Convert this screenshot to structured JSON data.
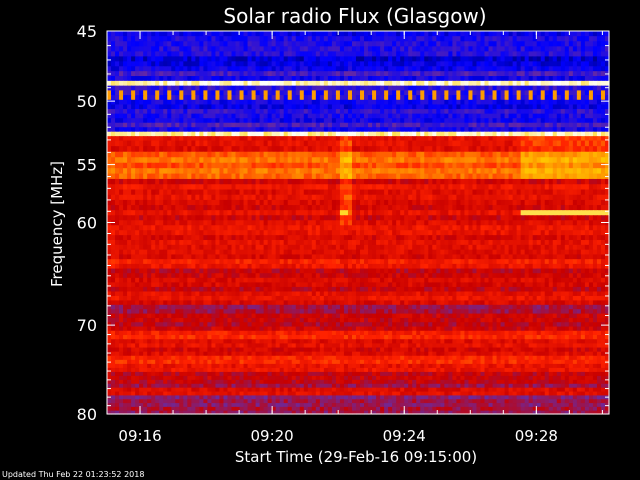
{
  "chart_data": {
    "type": "heatmap",
    "title": "Solar radio Flux (Glasgow)",
    "xlabel": "Start Time (29-Feb-16 09:15:00)",
    "ylabel": "Frequency [MHz]",
    "y_scale": "log",
    "ylim": [
      80,
      45
    ],
    "x_ticks": [
      "09:16",
      "09:20",
      "09:24",
      "09:28"
    ],
    "y_ticks": [
      "45",
      "50",
      "55",
      "60",
      "70",
      "80"
    ],
    "colormap": [
      "#000044",
      "#0000ff",
      "#6a2aa0",
      "#c80000",
      "#ff2200",
      "#ff8a00",
      "#ffd000",
      "#ffffff"
    ]
  },
  "footer": {
    "updated": "Updated Thu Feb 22 01:23:52 2018"
  }
}
